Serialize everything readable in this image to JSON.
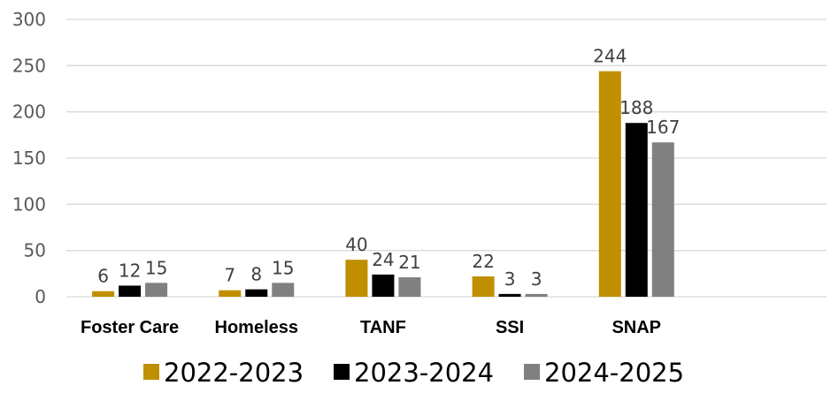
{
  "chart_data": {
    "type": "bar",
    "categories": [
      "Foster Care",
      "Homeless",
      "TANF",
      "SSI",
      "SNAP"
    ],
    "series": [
      {
        "name": "2022-2023",
        "values": [
          6,
          7,
          40,
          22,
          244
        ],
        "color": "#bf8f00"
      },
      {
        "name": "2023-2024",
        "values": [
          12,
          8,
          24,
          3,
          188
        ],
        "color": "#000000"
      },
      {
        "name": "2024-2025",
        "values": [
          15,
          15,
          21,
          3,
          167
        ],
        "color": "#808080"
      }
    ],
    "ylim": [
      0,
      300
    ],
    "yticks": [
      0,
      50,
      100,
      150,
      200,
      250,
      300
    ],
    "grid": true,
    "legend_position": "bottom"
  }
}
